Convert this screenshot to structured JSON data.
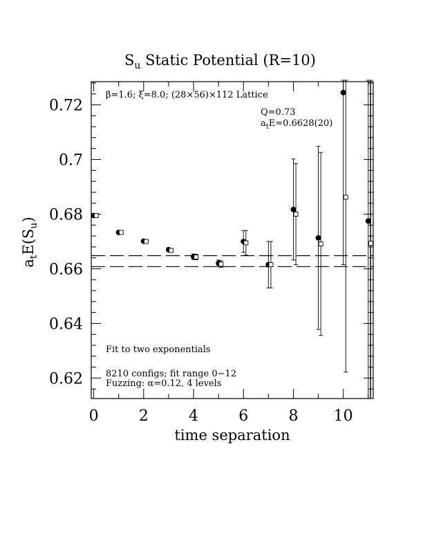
{
  "chart_data": {
    "type": "scatter",
    "title": "S",
    "title_sub": "u",
    "title_rest": " Static Potential (R=10)",
    "xlabel": "time separation",
    "ylabel_main": "a",
    "ylabel_sub1": "t",
    "ylabel_mid": "E(S",
    "ylabel_sub2": "u",
    "ylabel_end": ")",
    "xlim": [
      -0.1,
      11.2
    ],
    "ylim": [
      0.6125,
      0.7285
    ],
    "x_ticks": [
      0,
      2,
      4,
      6,
      8,
      10
    ],
    "x_tick_labels": [
      "0",
      "2",
      "4",
      "6",
      "8",
      "10"
    ],
    "y_ticks": [
      0.62,
      0.64,
      0.66,
      0.68,
      0.7,
      0.72
    ],
    "y_tick_labels": [
      "0.62",
      "0.64",
      "0.66",
      "0.68",
      "0.7",
      "0.72"
    ],
    "grid": false,
    "series": [
      {
        "marker": "filled-circle",
        "x": [
          0,
          1,
          2,
          3,
          4,
          5,
          6,
          7,
          8,
          9,
          10,
          11
        ],
        "y": [
          0.6795,
          0.6733,
          0.6701,
          0.667,
          0.6644,
          0.662,
          0.67,
          0.6615,
          0.6817,
          0.6713,
          0.7245,
          0.6775
        ],
        "err": [
          0.0003,
          0.0004,
          0.0005,
          0.0006,
          0.001,
          0.0012,
          0.004,
          0.0085,
          0.0185,
          0.0335,
          0.063,
          0.098
        ]
      },
      {
        "marker": "open-square",
        "x": [
          0.1,
          1.1,
          2.1,
          3.1,
          4.1,
          5.1,
          6.1,
          7.1,
          8.1,
          9.1,
          10.1,
          11.1
        ],
        "y": [
          0.6795,
          0.6733,
          0.67,
          0.6667,
          0.6643,
          0.6617,
          0.6695,
          0.6615,
          0.68,
          0.6691,
          0.6862,
          0.6693
        ],
        "err": [
          0.0003,
          0.0004,
          0.0005,
          0.0006,
          0.001,
          0.0012,
          0.0045,
          0.0085,
          0.0185,
          0.0335,
          0.064,
          0.098
        ]
      }
    ],
    "fit_band": {
      "center": 0.6628,
      "lower": 0.6608,
      "upper": 0.6648
    },
    "annotations": {
      "lattice": "β=1.6; ξ=8.0; (28×56)×112 Lattice",
      "q": "Q=0.73",
      "energy_main": "a",
      "energy_sub": "t",
      "energy_rest": "E=0.6628(20)",
      "fit_note": "Fit to two exponentials",
      "configs": "8210 configs; fit range 0−12",
      "fuzzing": "Fuzzing: α=0.12, 4 levels"
    }
  }
}
